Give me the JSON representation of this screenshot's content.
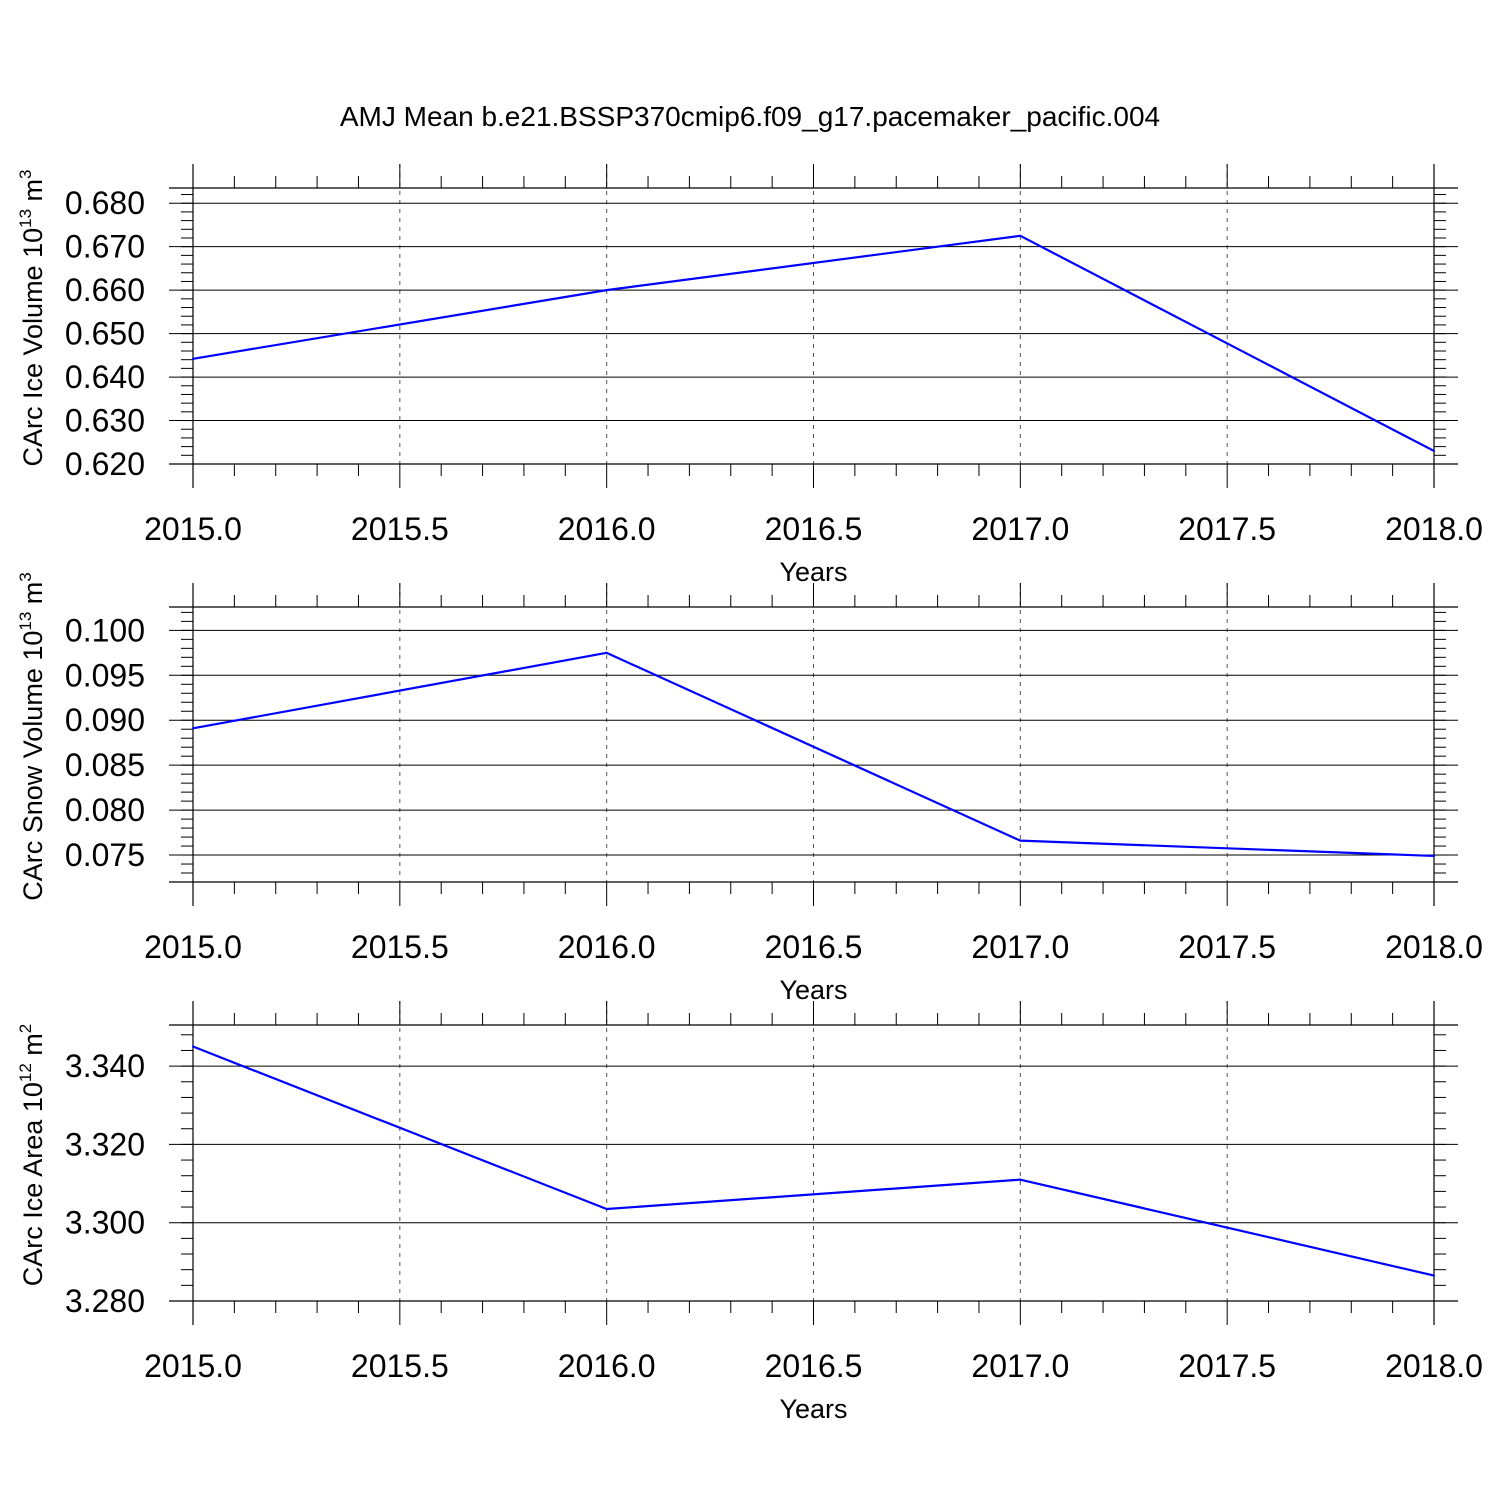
{
  "title": "AMJ Mean b.e21.BSSP370cmip6.f09_g17.pacemaker_pacific.004",
  "colors": {
    "series": "#0000ff",
    "axis": "#000000",
    "grid": "#555555"
  },
  "chart_data": [
    {
      "type": "line",
      "ylabel": "CArc Ice Volume 10",
      "ylabel_exp": "13",
      "ylabel_unit": " m",
      "ylabel_unit_exp": "3",
      "xlabel": "Years",
      "x": [
        2015,
        2016,
        2017,
        2018
      ],
      "series": [
        {
          "values": [
            0.6442,
            0.66,
            0.6725,
            0.623
          ]
        }
      ],
      "xlim": [
        2015,
        2018
      ],
      "ylim": [
        0.62,
        0.6835
      ],
      "yticks": [
        0.62,
        0.63,
        0.64,
        0.65,
        0.66,
        0.67,
        0.68
      ],
      "ytick_labels": [
        "0.620",
        "0.630",
        "0.640",
        "0.650",
        "0.660",
        "0.670",
        "0.680"
      ],
      "yminor_step": 0.002,
      "xticks": [
        2015.0,
        2015.5,
        2016.0,
        2016.5,
        2017.0,
        2017.5,
        2018.0
      ],
      "xtick_labels": [
        "2015.0",
        "2015.5",
        "2016.0",
        "2016.5",
        "2017.0",
        "2017.5",
        "2018.0"
      ],
      "xminor_step": 0.1,
      "grid": "vertical dashed"
    },
    {
      "type": "line",
      "ylabel": "CArc Snow Volume 10",
      "ylabel_exp": "13",
      "ylabel_unit": " m",
      "ylabel_unit_exp": "3",
      "xlabel": "Years",
      "x": [
        2015,
        2016,
        2017,
        2018
      ],
      "series": [
        {
          "values": [
            0.0891,
            0.0975,
            0.0766,
            0.0749
          ]
        }
      ],
      "xlim": [
        2015,
        2018
      ],
      "ylim": [
        0.072,
        0.1026
      ],
      "yticks": [
        0.075,
        0.08,
        0.085,
        0.09,
        0.095,
        0.1
      ],
      "ytick_labels": [
        "0.075",
        "0.080",
        "0.085",
        "0.090",
        "0.095",
        "0.100"
      ],
      "yminor_step": 0.001,
      "xticks": [
        2015.0,
        2015.5,
        2016.0,
        2016.5,
        2017.0,
        2017.5,
        2018.0
      ],
      "xtick_labels": [
        "2015.0",
        "2015.5",
        "2016.0",
        "2016.5",
        "2017.0",
        "2017.5",
        "2018.0"
      ],
      "xminor_step": 0.1,
      "grid": "vertical dashed"
    },
    {
      "type": "line",
      "ylabel": "CArc Ice Area 10",
      "ylabel_exp": "12",
      "ylabel_unit": " m",
      "ylabel_unit_exp": "2",
      "xlabel": "Years",
      "x": [
        2015,
        2016,
        2017,
        2018
      ],
      "series": [
        {
          "values": [
            3.345,
            3.3035,
            3.311,
            3.2865
          ]
        }
      ],
      "xlim": [
        2015,
        2018
      ],
      "ylim": [
        3.28,
        3.3505
      ],
      "yticks": [
        3.28,
        3.3,
        3.32,
        3.34
      ],
      "ytick_labels": [
        "3.280",
        "3.300",
        "3.320",
        "3.340"
      ],
      "yminor_step": 0.004,
      "xticks": [
        2015.0,
        2015.5,
        2016.0,
        2016.5,
        2017.0,
        2017.5,
        2018.0
      ],
      "xtick_labels": [
        "2015.0",
        "2015.5",
        "2016.0",
        "2016.5",
        "2017.0",
        "2017.5",
        "2018.0"
      ],
      "xminor_step": 0.1,
      "grid": "vertical dashed"
    }
  ]
}
